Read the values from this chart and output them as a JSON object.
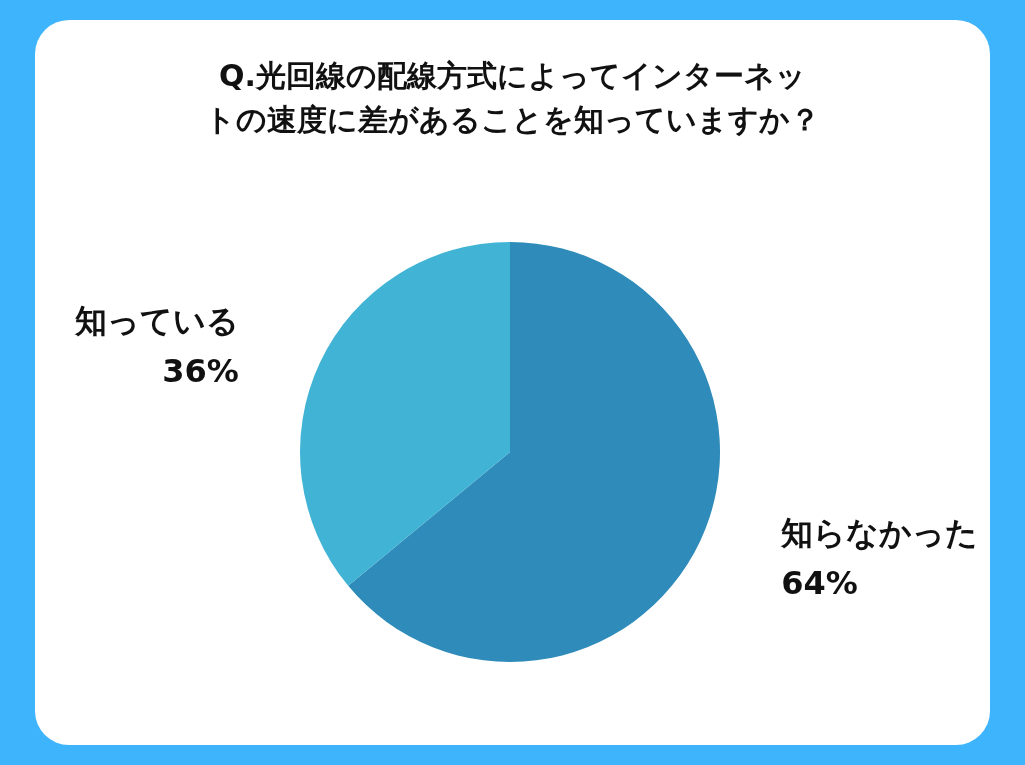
{
  "chart_data": {
    "type": "pie",
    "title": "Q.光回線の配線方式によってインターネットの速度に差があることを知っていますか？",
    "categories": [
      "知らなかった",
      "知っている"
    ],
    "values": [
      64,
      36
    ],
    "colors": [
      "#2e8bba",
      "#41b4d5"
    ],
    "value_labels": [
      "64%",
      "36%"
    ],
    "legend": false
  }
}
